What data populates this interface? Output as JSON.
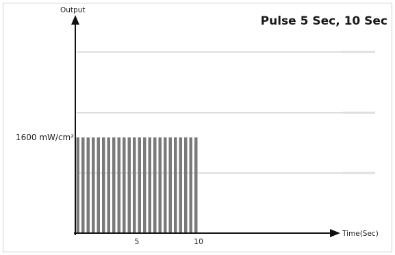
{
  "chart_data": {
    "type": "bar",
    "title": "Pulse 5 Sec, 10 Sec",
    "ylabel": "Output",
    "xlabel": "Time(Sec)",
    "level_label": "1600 mW/cm²",
    "level_value": 1600,
    "pulse_count": 24,
    "xlim": [
      0,
      12
    ],
    "x_ticks": [
      5,
      10
    ],
    "x_tick_labels": [
      "5",
      "10"
    ],
    "grid": "horizontal",
    "legend": "none",
    "colors": {
      "bars": "#7a7a7a",
      "axes": "#111111",
      "grid": "#bdbdbd"
    }
  }
}
